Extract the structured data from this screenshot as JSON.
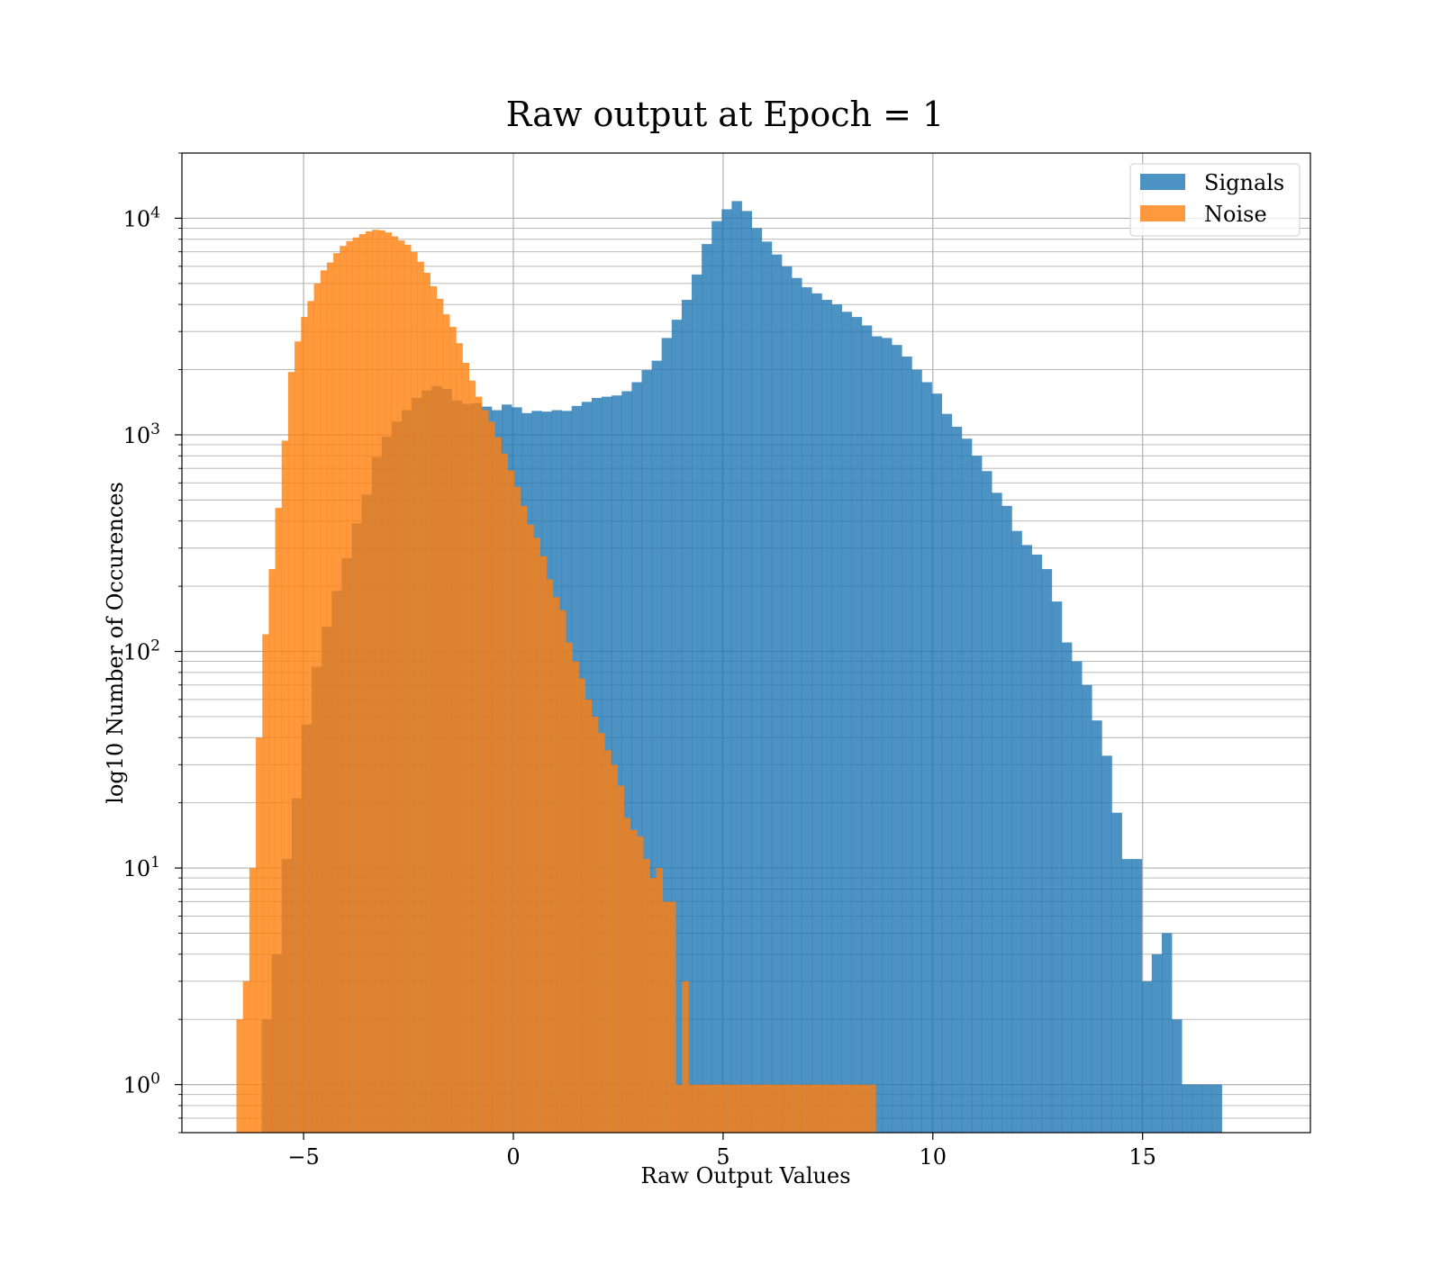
{
  "chart_data": {
    "type": "bar",
    "title": "Raw output at Epoch = 1",
    "xlabel": "Raw Output Values",
    "ylabel": "log10 Number of Occurences",
    "xlim": [
      -7.9,
      19.0
    ],
    "ylim": [
      0.6,
      20000
    ],
    "yscale": "log",
    "grid": true,
    "legend_position": "upper right",
    "x_ticks": [
      -5,
      0,
      5,
      10,
      15
    ],
    "x_tick_labels": [
      "−5",
      "0",
      "5",
      "10",
      "15"
    ],
    "y_ticks": [
      {
        "value": 1,
        "base": "10",
        "exp": "0"
      },
      {
        "value": 10,
        "base": "10",
        "exp": "1"
      },
      {
        "value": 100,
        "base": "10",
        "exp": "2"
      },
      {
        "value": 1000,
        "base": "10",
        "exp": "3"
      },
      {
        "value": 10000,
        "base": "10",
        "exp": "4"
      }
    ],
    "colors": {
      "signals": "#1f77b4",
      "noise": "#ff7f0e"
    },
    "series": [
      {
        "name": "Signals",
        "color": "#1f77b4",
        "bin_start": -6.0,
        "bin_width": 0.2384,
        "values": [
          2,
          4,
          11,
          21,
          46,
          85,
          130,
          190,
          270,
          390,
          530,
          790,
          980,
          1150,
          1300,
          1480,
          1600,
          1680,
          1630,
          1440,
          1390,
          1400,
          1350,
          1300,
          1380,
          1340,
          1260,
          1290,
          1280,
          1300,
          1290,
          1360,
          1420,
          1480,
          1500,
          1520,
          1590,
          1750,
          1990,
          2200,
          2800,
          3400,
          4200,
          5500,
          7600,
          9700,
          11000,
          12000,
          10800,
          9000,
          7800,
          6800,
          6000,
          5300,
          4800,
          4500,
          4200,
          4000,
          3700,
          3500,
          3200,
          2850,
          2800,
          2600,
          2300,
          2000,
          1750,
          1550,
          1250,
          1090,
          960,
          800,
          680,
          540,
          470,
          360,
          310,
          280,
          240,
          170,
          110,
          90,
          70,
          48,
          33,
          18,
          11,
          11,
          3,
          4,
          5,
          2,
          1,
          1,
          1,
          1
        ]
      },
      {
        "name": "Noise",
        "color": "#ff7f0e",
        "bin_start": -6.6,
        "bin_width": 0.1539,
        "values": [
          2,
          3,
          10,
          40,
          120,
          240,
          460,
          940,
          1950,
          2700,
          3500,
          4150,
          5000,
          5750,
          6250,
          6900,
          7450,
          7850,
          8150,
          8450,
          8700,
          8850,
          8800,
          8600,
          8250,
          7900,
          7550,
          7000,
          6300,
          5600,
          4850,
          4250,
          3600,
          3150,
          2650,
          2150,
          1780,
          1500,
          1300,
          1150,
          975,
          820,
          685,
          575,
          470,
          385,
          335,
          275,
          215,
          178,
          155,
          110,
          90,
          75,
          60,
          50,
          42,
          35,
          30,
          24,
          17,
          15,
          14,
          11,
          9,
          10,
          7,
          7,
          1,
          3,
          1,
          1,
          1,
          1,
          1,
          1,
          1,
          1,
          1,
          1,
          1,
          1,
          1,
          1,
          1,
          1,
          1,
          1,
          1,
          1,
          1,
          1,
          1,
          1,
          1,
          1,
          1,
          1,
          1
        ]
      }
    ]
  }
}
